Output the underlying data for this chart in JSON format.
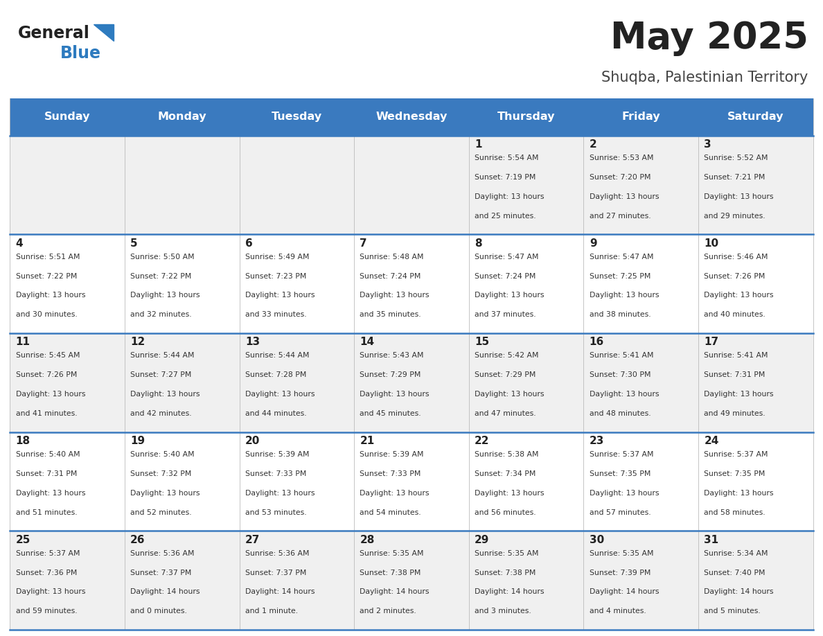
{
  "title": "May 2025",
  "subtitle": "Shuqba, Palestinian Territory",
  "days_of_week": [
    "Sunday",
    "Monday",
    "Tuesday",
    "Wednesday",
    "Thursday",
    "Friday",
    "Saturday"
  ],
  "header_bg": "#3a7abf",
  "header_text": "#ffffff",
  "row_bg_odd": "#f0f0f0",
  "row_bg_even": "#ffffff",
  "divider_color": "#3a7abf",
  "title_color": "#222222",
  "subtitle_color": "#444444",
  "day_num_color": "#222222",
  "cell_text_color": "#333333",
  "logo_general_color": "#222222",
  "logo_blue_color": "#2e7bbf",
  "calendar_data": [
    [
      {
        "day": "",
        "sunrise": "",
        "sunset": "",
        "dl_line1": "",
        "dl_line2": ""
      },
      {
        "day": "",
        "sunrise": "",
        "sunset": "",
        "dl_line1": "",
        "dl_line2": ""
      },
      {
        "day": "",
        "sunrise": "",
        "sunset": "",
        "dl_line1": "",
        "dl_line2": ""
      },
      {
        "day": "",
        "sunrise": "",
        "sunset": "",
        "dl_line1": "",
        "dl_line2": ""
      },
      {
        "day": "1",
        "sunrise": "5:54 AM",
        "sunset": "7:19 PM",
        "dl_line1": "Daylight: 13 hours",
        "dl_line2": "and 25 minutes."
      },
      {
        "day": "2",
        "sunrise": "5:53 AM",
        "sunset": "7:20 PM",
        "dl_line1": "Daylight: 13 hours",
        "dl_line2": "and 27 minutes."
      },
      {
        "day": "3",
        "sunrise": "5:52 AM",
        "sunset": "7:21 PM",
        "dl_line1": "Daylight: 13 hours",
        "dl_line2": "and 29 minutes."
      }
    ],
    [
      {
        "day": "4",
        "sunrise": "5:51 AM",
        "sunset": "7:22 PM",
        "dl_line1": "Daylight: 13 hours",
        "dl_line2": "and 30 minutes."
      },
      {
        "day": "5",
        "sunrise": "5:50 AM",
        "sunset": "7:22 PM",
        "dl_line1": "Daylight: 13 hours",
        "dl_line2": "and 32 minutes."
      },
      {
        "day": "6",
        "sunrise": "5:49 AM",
        "sunset": "7:23 PM",
        "dl_line1": "Daylight: 13 hours",
        "dl_line2": "and 33 minutes."
      },
      {
        "day": "7",
        "sunrise": "5:48 AM",
        "sunset": "7:24 PM",
        "dl_line1": "Daylight: 13 hours",
        "dl_line2": "and 35 minutes."
      },
      {
        "day": "8",
        "sunrise": "5:47 AM",
        "sunset": "7:24 PM",
        "dl_line1": "Daylight: 13 hours",
        "dl_line2": "and 37 minutes."
      },
      {
        "day": "9",
        "sunrise": "5:47 AM",
        "sunset": "7:25 PM",
        "dl_line1": "Daylight: 13 hours",
        "dl_line2": "and 38 minutes."
      },
      {
        "day": "10",
        "sunrise": "5:46 AM",
        "sunset": "7:26 PM",
        "dl_line1": "Daylight: 13 hours",
        "dl_line2": "and 40 minutes."
      }
    ],
    [
      {
        "day": "11",
        "sunrise": "5:45 AM",
        "sunset": "7:26 PM",
        "dl_line1": "Daylight: 13 hours",
        "dl_line2": "and 41 minutes."
      },
      {
        "day": "12",
        "sunrise": "5:44 AM",
        "sunset": "7:27 PM",
        "dl_line1": "Daylight: 13 hours",
        "dl_line2": "and 42 minutes."
      },
      {
        "day": "13",
        "sunrise": "5:44 AM",
        "sunset": "7:28 PM",
        "dl_line1": "Daylight: 13 hours",
        "dl_line2": "and 44 minutes."
      },
      {
        "day": "14",
        "sunrise": "5:43 AM",
        "sunset": "7:29 PM",
        "dl_line1": "Daylight: 13 hours",
        "dl_line2": "and 45 minutes."
      },
      {
        "day": "15",
        "sunrise": "5:42 AM",
        "sunset": "7:29 PM",
        "dl_line1": "Daylight: 13 hours",
        "dl_line2": "and 47 minutes."
      },
      {
        "day": "16",
        "sunrise": "5:41 AM",
        "sunset": "7:30 PM",
        "dl_line1": "Daylight: 13 hours",
        "dl_line2": "and 48 minutes."
      },
      {
        "day": "17",
        "sunrise": "5:41 AM",
        "sunset": "7:31 PM",
        "dl_line1": "Daylight: 13 hours",
        "dl_line2": "and 49 minutes."
      }
    ],
    [
      {
        "day": "18",
        "sunrise": "5:40 AM",
        "sunset": "7:31 PM",
        "dl_line1": "Daylight: 13 hours",
        "dl_line2": "and 51 minutes."
      },
      {
        "day": "19",
        "sunrise": "5:40 AM",
        "sunset": "7:32 PM",
        "dl_line1": "Daylight: 13 hours",
        "dl_line2": "and 52 minutes."
      },
      {
        "day": "20",
        "sunrise": "5:39 AM",
        "sunset": "7:33 PM",
        "dl_line1": "Daylight: 13 hours",
        "dl_line2": "and 53 minutes."
      },
      {
        "day": "21",
        "sunrise": "5:39 AM",
        "sunset": "7:33 PM",
        "dl_line1": "Daylight: 13 hours",
        "dl_line2": "and 54 minutes."
      },
      {
        "day": "22",
        "sunrise": "5:38 AM",
        "sunset": "7:34 PM",
        "dl_line1": "Daylight: 13 hours",
        "dl_line2": "and 56 minutes."
      },
      {
        "day": "23",
        "sunrise": "5:37 AM",
        "sunset": "7:35 PM",
        "dl_line1": "Daylight: 13 hours",
        "dl_line2": "and 57 minutes."
      },
      {
        "day": "24",
        "sunrise": "5:37 AM",
        "sunset": "7:35 PM",
        "dl_line1": "Daylight: 13 hours",
        "dl_line2": "and 58 minutes."
      }
    ],
    [
      {
        "day": "25",
        "sunrise": "5:37 AM",
        "sunset": "7:36 PM",
        "dl_line1": "Daylight: 13 hours",
        "dl_line2": "and 59 minutes."
      },
      {
        "day": "26",
        "sunrise": "5:36 AM",
        "sunset": "7:37 PM",
        "dl_line1": "Daylight: 14 hours",
        "dl_line2": "and 0 minutes."
      },
      {
        "day": "27",
        "sunrise": "5:36 AM",
        "sunset": "7:37 PM",
        "dl_line1": "Daylight: 14 hours",
        "dl_line2": "and 1 minute."
      },
      {
        "day": "28",
        "sunrise": "5:35 AM",
        "sunset": "7:38 PM",
        "dl_line1": "Daylight: 14 hours",
        "dl_line2": "and 2 minutes."
      },
      {
        "day": "29",
        "sunrise": "5:35 AM",
        "sunset": "7:38 PM",
        "dl_line1": "Daylight: 14 hours",
        "dl_line2": "and 3 minutes."
      },
      {
        "day": "30",
        "sunrise": "5:35 AM",
        "sunset": "7:39 PM",
        "dl_line1": "Daylight: 14 hours",
        "dl_line2": "and 4 minutes."
      },
      {
        "day": "31",
        "sunrise": "5:34 AM",
        "sunset": "7:40 PM",
        "dl_line1": "Daylight: 14 hours",
        "dl_line2": "and 5 minutes."
      }
    ]
  ]
}
